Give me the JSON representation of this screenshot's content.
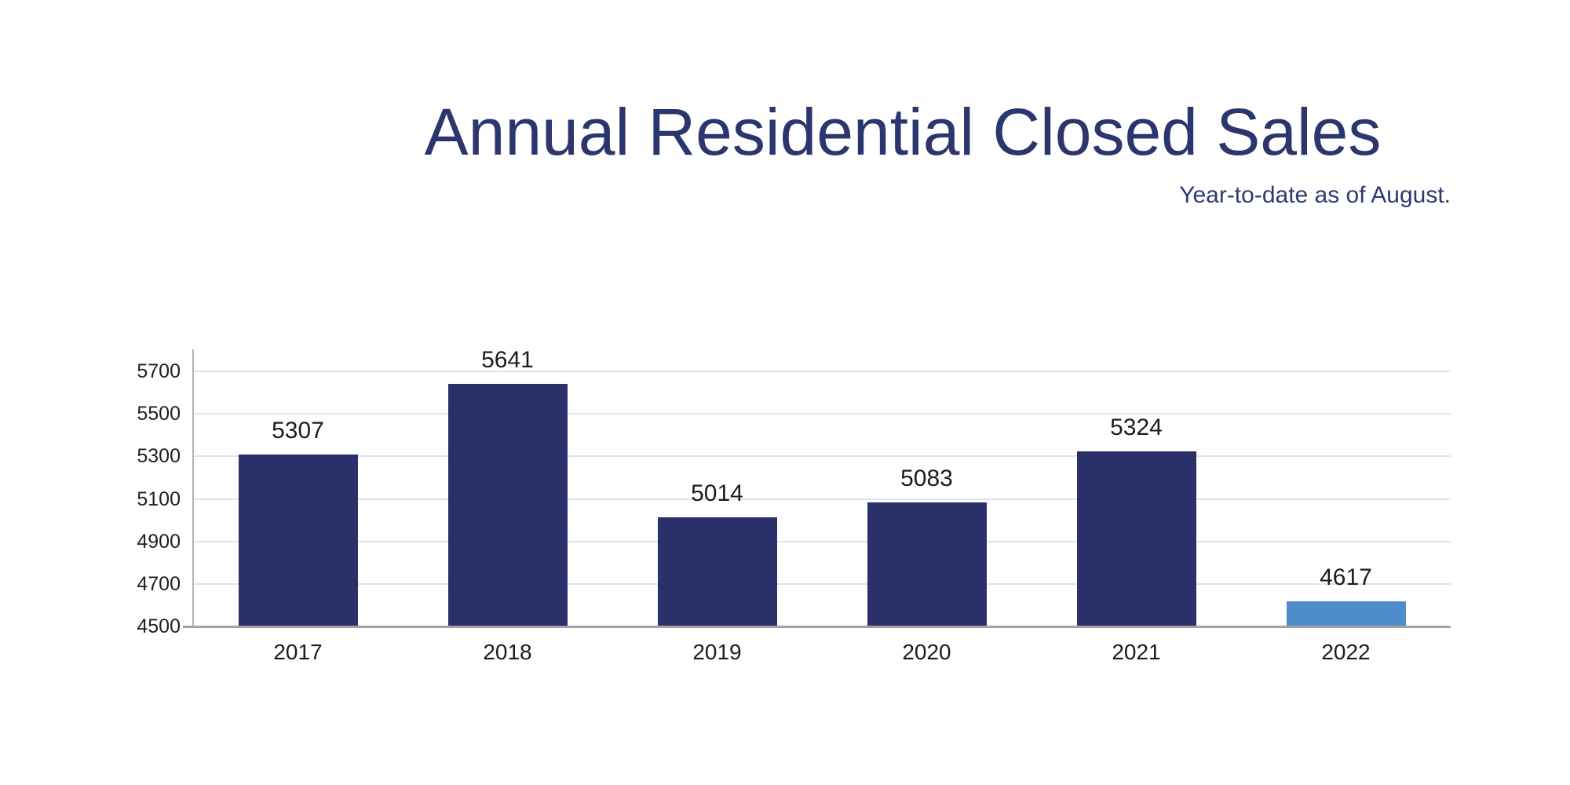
{
  "page": {
    "background_color": "#ffffff"
  },
  "header": {
    "title": "Annual Residential Closed Sales",
    "subtitle": "Year-to-date as of August.",
    "title_color": "#2b356e",
    "subtitle_color": "#2e3a73"
  },
  "chart_data": {
    "type": "bar",
    "title": "Annual Residential Closed Sales",
    "subtitle": "Year-to-date as of August.",
    "categories": [
      "2017",
      "2018",
      "2019",
      "2020",
      "2021",
      "2022"
    ],
    "values": [
      5307,
      5641,
      5014,
      5083,
      5324,
      4617
    ],
    "value_labels_shown": true,
    "bar_colors": [
      "#2a316a",
      "#2a316a",
      "#2a316a",
      "#2a316a",
      "#2a316a",
      "#4e8cca"
    ],
    "highlight_index": 5,
    "highlight_color": "#4e8cca",
    "default_bar_color": "#2a316a",
    "xlabel": "",
    "ylabel": "",
    "ylim": [
      4500,
      5700
    ],
    "yticks": [
      4500,
      4700,
      4900,
      5100,
      5300,
      5500,
      5700
    ],
    "grid": true,
    "legend": "none",
    "gridline_color": "#dde4f0",
    "baseline_color": "#a2a2a2",
    "y_axis_line_color": "#aeb3b9",
    "tick_label_color": "#1f1f1f"
  }
}
